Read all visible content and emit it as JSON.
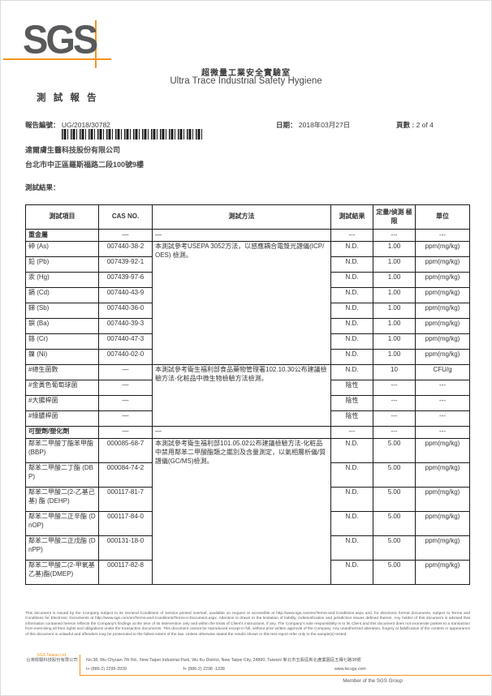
{
  "colors": {
    "accent_orange": "#F7941D",
    "logo_gray": "#58595B"
  },
  "header": {
    "logo_text": "SGS",
    "lab_name_zh": "超微量工業安全實驗室",
    "lab_name_en": "Ultra Trace Industrial Safety Hygiene",
    "report_title": "測 試 報 告"
  },
  "report_info": {
    "report_no_label": "報告編號：",
    "report_no": "UG/2018/30782",
    "date_label": "日期：",
    "date": "2018年03月27日",
    "page_label": "頁數 :",
    "page": "2 of 4",
    "client_name": "達爾膚生醫科技股份有限公司",
    "client_address": "台北市中正區羅斯福路二段100號9樓",
    "results_label": "測試結果："
  },
  "table": {
    "headers": [
      "測試項目",
      "CAS NO.",
      "測試方法",
      "測試結果",
      "定量/偵測 極限",
      "單位"
    ],
    "rows": [
      {
        "item": "重金屬",
        "bold": true,
        "h": "short",
        "cas": "—",
        "method": "—",
        "mrs": 1,
        "result": "---",
        "limit": "---",
        "unit": "---"
      },
      {
        "item": "砷 (As)",
        "h": "normal",
        "cas": "007440-38-2",
        "method": "本測試參考USEPA 3052方法，以感應耦合電漿光譜儀(ICP/OES) 檢測。",
        "mrs": 8,
        "result": "N.D.",
        "limit": "1.00",
        "unit": "ppm(mg/kg)"
      },
      {
        "item": "鉛 (Pb)",
        "h": "normal",
        "cas": "007439-92-1",
        "result": "N.D.",
        "limit": "1.00",
        "unit": "ppm(mg/kg)"
      },
      {
        "item": "汞 (Hg)",
        "h": "normal",
        "cas": "007439-97-6",
        "result": "N.D.",
        "limit": "1.00",
        "unit": "ppm(mg/kg)"
      },
      {
        "item": "鎘 (Cd)",
        "h": "normal",
        "cas": "007440-43-9",
        "result": "N.D.",
        "limit": "1.00",
        "unit": "ppm(mg/kg)"
      },
      {
        "item": "銻 (Sb)",
        "h": "normal",
        "cas": "007440-36-0",
        "result": "N.D.",
        "limit": "1.00",
        "unit": "ppm(mg/kg)"
      },
      {
        "item": "鋇 (Ba)",
        "h": "normal",
        "cas": "007440-39-3",
        "result": "N.D.",
        "limit": "1.00",
        "unit": "ppm(mg/kg)"
      },
      {
        "item": "鉻 (Cr)",
        "h": "normal",
        "cas": "007440-47-3",
        "result": "N.D.",
        "limit": "1.00",
        "unit": "ppm(mg/kg)"
      },
      {
        "item": "鎳 (Ni)",
        "h": "normal",
        "cas": "007440-02-0",
        "result": "N.D.",
        "limit": "1.00",
        "unit": "ppm(mg/kg)"
      },
      {
        "item": "#總生菌數",
        "h": "normal",
        "cas": "—",
        "method": "本測試參考衛生福利部食品藥物管理署102.10.30公布建議檢驗方法-化粧品中微生物檢驗方法檢測。",
        "mrs": 4,
        "result": "N.D.",
        "limit": "10",
        "unit": "CFU/g"
      },
      {
        "item": "#金黃色葡萄球菌",
        "h": "normal",
        "cas": "—",
        "result": "陰性",
        "limit": "---",
        "unit": "---"
      },
      {
        "item": "#大腸桿菌",
        "h": "normal",
        "cas": "—",
        "result": "陰性",
        "limit": "---",
        "unit": "---"
      },
      {
        "item": "#綠膿桿菌",
        "h": "normal",
        "cas": "—",
        "result": "陰性",
        "limit": "---",
        "unit": "---"
      },
      {
        "item": "可塑劑/塑化劑",
        "bold": true,
        "h": "short",
        "cas": "—",
        "method": "—",
        "mrs": 1,
        "result": "---",
        "limit": "---",
        "unit": "---"
      },
      {
        "item": "鄰苯二甲酸丁酯苯甲酯(BBP)",
        "h": "tall",
        "cas": "000085-68-7",
        "method": "本測試參考衛生福利部101.05.02公布建議檢驗方法-化粧品中禁用鄰苯二甲酸酯類之鑑別及含量測定，以氣相層析儀/質譜儀(GC/MS)檢測。",
        "mrs": 6,
        "result": "N.D.",
        "limit": "5.00",
        "unit": "ppm(mg/kg)"
      },
      {
        "item": "鄰苯二甲酸二丁酯 (DBP)",
        "h": "tall",
        "cas": "000084-74-2",
        "result": "N.D.",
        "limit": "5.00",
        "unit": "ppm(mg/kg)"
      },
      {
        "item": "鄰苯二甲酸二(2-乙基己基) 酯 (DEHP)",
        "h": "tall",
        "cas": "000117-81-7",
        "result": "N.D.",
        "limit": "5.00",
        "unit": "ppm(mg/kg)"
      },
      {
        "item": "鄰苯二甲酸二正辛酯 (DnOP)",
        "h": "tall",
        "cas": "000117-84-0",
        "result": "N.D.",
        "limit": "5.00",
        "unit": "ppm(mg/kg)"
      },
      {
        "item": "鄰苯二甲酸二正戊酯 (DnPP)",
        "h": "tall",
        "cas": "000131-18-0",
        "result": "N.D.",
        "limit": "5.00",
        "unit": "ppm(mg/kg)"
      },
      {
        "item": "鄰苯二甲酸二(2-甲氧基乙基)酯(DMEP)",
        "h": "tall",
        "cas": "000117-82-8",
        "result": "N.D.",
        "limit": "5.00",
        "unit": "ppm(mg/kg)"
      }
    ]
  },
  "footer": {
    "legal_text": "This document is issued by the Company subject to its General Conditions of Service printed overleaf, available on request or accessible at http://www.sgs.com/en/Terms-and-Conditions.aspx and, for electronic format documents, subject to Terms and Conditions for Electronic Documents at http://www.sgs.com/en/Terms-and-Conditions/Terms-e-Document.aspx. Attention is drawn to the limitation of liability, indemnification and jurisdiction issues defined therein. Any holder of this document is advised that information contained hereon reflects the Company's findings at the time of its intervention only and within the limits of Client's instructions, if any. The Company's sole responsibility is to its Client and this document does not exonerate parties to a transaction from exercising all their rights and obligations under the transaction documents. This document cannot be reproduced except in full, without prior written approval of the Company. Any unauthorized alteration, forgery or falsification of the content or appearance of this document is unlawful and offenders may be prosecuted to the fullest extent of the law. Unless otherwise stated the results shown in this test report refer only to the sample(s) tested.",
    "company_en": "SGS Taiwan Ltd.",
    "company_zh": "台灣檢驗科技股份有限公司",
    "address": "No.38, Wu Chyuan 7th Rd., New Taipei Industrial Park, Wu Ku District, New Taipei City, 24890, Taiwan/ 新北市五股區新北產業園區五權七路38號",
    "tel": "t+ (886-2) 2299-3939",
    "fax": "f+ (886-2) 2298 -1338",
    "website": "www.tw.sgs.com",
    "member": "Member of the SGS Group"
  }
}
